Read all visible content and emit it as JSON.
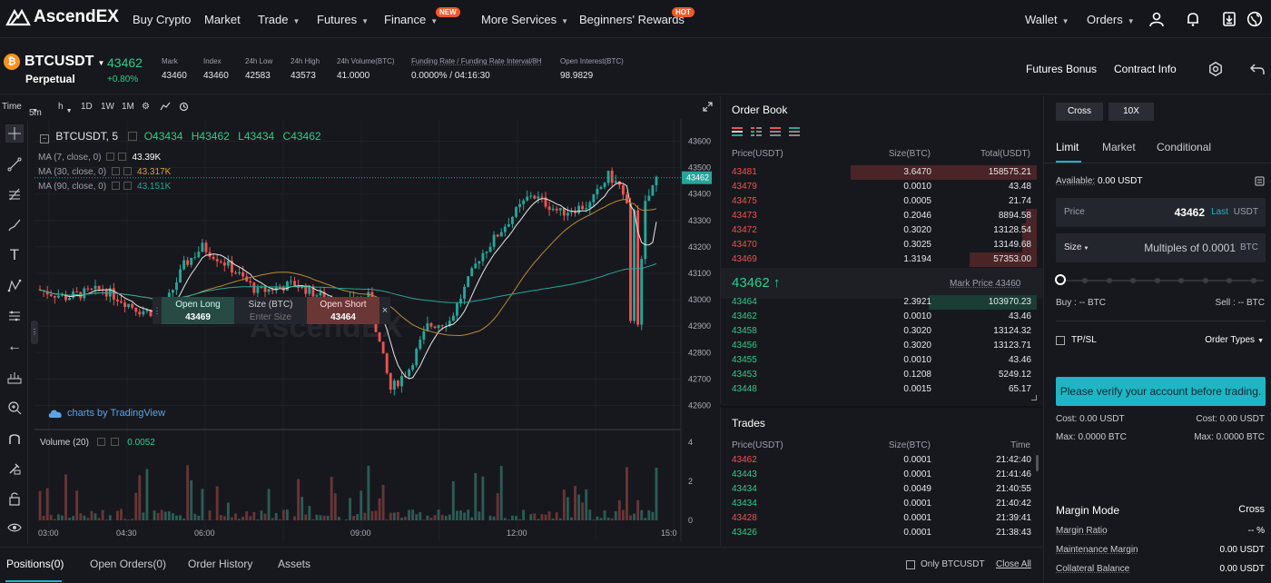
{
  "nav": {
    "logo": "AscendEX",
    "items": [
      {
        "label": "Buy Crypto",
        "caret": false
      },
      {
        "label": "Market",
        "caret": false
      },
      {
        "label": "Trade",
        "caret": true
      },
      {
        "label": "Futures",
        "caret": true
      },
      {
        "label": "Finance",
        "caret": true,
        "tag": "NEW"
      },
      {
        "label": "More Services",
        "caret": true
      },
      {
        "label": "Beginners' Rewards",
        "caret": false,
        "tag": "HOT"
      }
    ],
    "wallet": "Wallet",
    "orders": "Orders",
    "icons": [
      "user-icon",
      "bell-icon",
      "download-icon",
      "globe-icon"
    ]
  },
  "symbol": {
    "name": "BTCUSDT",
    "type": "Perpetual",
    "price": "43462",
    "change": "+0.80%",
    "stats": [
      {
        "label": "Mark",
        "value": "43460"
      },
      {
        "label": "Index",
        "value": "43460"
      },
      {
        "label": "24h Low",
        "value": "42583"
      },
      {
        "label": "24h High",
        "value": "43573"
      },
      {
        "label": "24h Volume(BTC)",
        "value": "41.0000"
      },
      {
        "label": "Funding Rate / Funding Rate Interval/8H",
        "value": "0.0000% / 04:16:30"
      },
      {
        "label": "Open Interest(BTC)",
        "value": "98.9829"
      }
    ],
    "futures_bonus": "Futures Bonus",
    "contract_info": "Contract Info"
  },
  "chart": {
    "toolbar": {
      "time": "Time",
      "interval": "5m",
      "intervals": [
        "1D",
        "1W",
        "1M"
      ]
    },
    "legend": {
      "pair": "BTCUSDT, 5",
      "o": "O43434",
      "h": "H43462",
      "l": "L43434",
      "c": "C43462"
    },
    "ma": [
      {
        "label": "MA (7, close, 0)",
        "value": "43.39K",
        "color": "#ffffff"
      },
      {
        "label": "MA (30, close, 0)",
        "value": "43.317K",
        "color": "#d9a441"
      },
      {
        "label": "MA (90, close, 0)",
        "value": "43.151K",
        "color": "#26a69a"
      }
    ],
    "volume_legend": {
      "label": "Volume (20)",
      "value": "0.0052"
    },
    "trade_widget": {
      "open_long": "Open Long",
      "long_price": "43469",
      "size_label": "Size (BTC)",
      "size_placeholder": "Enter Size",
      "open_short": "Open Short",
      "short_price": "43464"
    },
    "price_axis": [
      "43600",
      "43500",
      "43400",
      "43300",
      "43200",
      "43100",
      "43000",
      "42900",
      "42800",
      "42700",
      "42600"
    ],
    "last_price_tag": "43462",
    "vol_axis": [
      "4",
      "2",
      "0"
    ],
    "time_axis": [
      "03:00",
      "04:30",
      "06:00",
      "09:00",
      "12:00",
      "15:0"
    ],
    "watermark": "AscendEX",
    "tradingview": "charts by TradingView"
  },
  "orderbook": {
    "title": "Order Book",
    "headers": [
      "Price(USDT)",
      "Size(BTC)",
      "Total(USDT)"
    ],
    "asks": [
      {
        "price": "43481",
        "size": "3.6470",
        "total": "158575.21",
        "depth": 1.0
      },
      {
        "price": "43479",
        "size": "0.0010",
        "total": "43.48",
        "depth": 0.0
      },
      {
        "price": "43475",
        "size": "0.0005",
        "total": "21.74",
        "depth": 0.0
      },
      {
        "price": "43473",
        "size": "0.2046",
        "total": "8894.58",
        "depth": 0.06
      },
      {
        "price": "43472",
        "size": "0.3020",
        "total": "13128.54",
        "depth": 0.08
      },
      {
        "price": "43470",
        "size": "0.3025",
        "total": "13149.68",
        "depth": 0.08
      },
      {
        "price": "43469",
        "size": "1.3194",
        "total": "57353.00",
        "depth": 0.36
      }
    ],
    "mid_price": "43462 ↑",
    "mark_price": "Mark Price 43460",
    "bids": [
      {
        "price": "43464",
        "size": "2.3921",
        "total": "103970.23",
        "depth": 0.58
      },
      {
        "price": "43462",
        "size": "0.0010",
        "total": "43.46",
        "depth": 0.0
      },
      {
        "price": "43458",
        "size": "0.3020",
        "total": "13124.32",
        "depth": 0.0
      },
      {
        "price": "43456",
        "size": "0.3020",
        "total": "13123.71",
        "depth": 0.0
      },
      {
        "price": "43455",
        "size": "0.0010",
        "total": "43.46",
        "depth": 0.0
      },
      {
        "price": "43453",
        "size": "0.1208",
        "total": "5249.12",
        "depth": 0.0
      },
      {
        "price": "43448",
        "size": "0.0015",
        "total": "65.17",
        "depth": 0.0
      }
    ]
  },
  "trades": {
    "title": "Trades",
    "headers": [
      "Price(USDT)",
      "Size(BTC)",
      "Time"
    ],
    "rows": [
      {
        "price": "43462",
        "size": "0.0001",
        "time": "21:42:40",
        "side": "sell"
      },
      {
        "price": "43443",
        "size": "0.0001",
        "time": "21:41:46",
        "side": "buy"
      },
      {
        "price": "43434",
        "size": "0.0049",
        "time": "21:40:55",
        "side": "buy"
      },
      {
        "price": "43434",
        "size": "0.0001",
        "time": "21:40:42",
        "side": "buy"
      },
      {
        "price": "43428",
        "size": "0.0001",
        "time": "21:39:41",
        "side": "sell"
      },
      {
        "price": "43426",
        "size": "0.0001",
        "time": "21:38:43",
        "side": "buy"
      }
    ]
  },
  "order_form": {
    "margin_mode_btn": "Cross",
    "leverage_btn": "10X",
    "tabs": [
      "Limit",
      "Market",
      "Conditional"
    ],
    "available_label": "Available:",
    "available_value": "0.00 USDT",
    "price_label": "Price",
    "price_value": "43462",
    "price_last": "Last",
    "price_unit": "USDT",
    "size_label": "Size",
    "size_placeholder": "Multiples of 0.0001",
    "size_unit": "BTC",
    "buy_label": "Buy : -- BTC",
    "sell_label": "Sell : -- BTC",
    "tpsl": "TP/SL",
    "order_types": "Order Types",
    "verify_btn": "Please verify your account before trading.",
    "cost_left": "Cost: 0.00 USDT",
    "cost_right": "Cost: 0.00 USDT",
    "max_left": "Max: 0.0000 BTC",
    "max_right": "Max: 0.0000 BTC",
    "margin_mode_label": "Margin Mode",
    "margin_mode_value": "Cross",
    "margin_rows": [
      {
        "label": "Margin Ratio",
        "value": "-- %"
      },
      {
        "label": "Maintenance Margin",
        "value": "0.00 USDT"
      },
      {
        "label": "Collateral Balance",
        "value": "0.00 USDT"
      }
    ]
  },
  "bottom": {
    "tabs": [
      "Positions(0)",
      "Open Orders(0)",
      "Order History",
      "Assets"
    ],
    "only_pair": "Only BTCUSDT",
    "close_all": "Close All"
  },
  "colors": {
    "green": "#26a69a",
    "red": "#ef5350",
    "bid_text": "#2fcc8b",
    "ask_text": "#f0524f",
    "accent": "#1fb5c4"
  }
}
